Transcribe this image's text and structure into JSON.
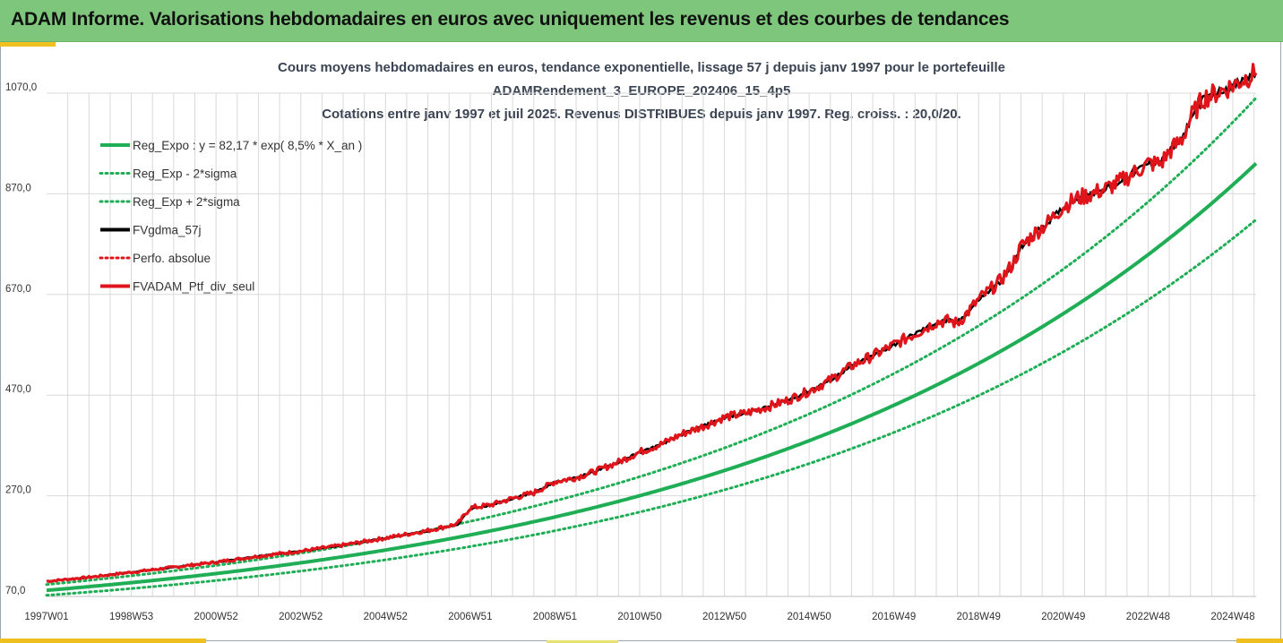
{
  "header": {
    "title": "ADAM Informe. Valorisations hebdomadaires en euros avec uniquement les revenus et des courbes de tendances"
  },
  "colors": {
    "banner": "#7dc67c",
    "regression": "#1fae55",
    "fvgdma": "#000000",
    "perf": "#e0151b",
    "grid": "#d9d9d9"
  },
  "chart_data": {
    "type": "line",
    "title": [
      "Cours moyens hebdomadaires  en euros, tendance exponentielle, lissage 57 j depuis janv 1997 pour le portefeuille",
      "ADAMRendement_3_EUROPE_202406_15_4p5",
      "Cotations  entre janv 1997 et juil 2025. Revenus DISTRIBUES depuis janv 1997. Reg. croiss. : 20,0/20."
    ],
    "xlabel": "",
    "ylabel": "",
    "x_tick_labels": [
      "1997W01",
      "1998W53",
      "2000W52",
      "2002W52",
      "2004W52",
      "2006W51",
      "2008W51",
      "2010W50",
      "2012W50",
      "2014W50",
      "2016W49",
      "2018W49",
      "2020W49",
      "2022W48",
      "2024W48"
    ],
    "y_tick_labels": [
      "70,0",
      "270,0",
      "470,0",
      "670,0",
      "870,0",
      "1070,0"
    ],
    "y_ticks": [
      70,
      270,
      470,
      670,
      870,
      1070
    ],
    "ylim": [
      70,
      1070
    ],
    "xlim": [
      1997.0,
      2025.55
    ],
    "grid": true,
    "legend_position": "top-left",
    "legend": [
      {
        "name": "Reg_Expo : y = 82,17 * exp( 8,5% *  X_an )",
        "style": "solid",
        "color": "#1fae55"
      },
      {
        "name": "Reg_Exp - 2*sigma",
        "style": "dotted",
        "color": "#1fae55"
      },
      {
        "name": "Reg_Exp + 2*sigma",
        "style": "dotted",
        "color": "#1fae55"
      },
      {
        "name": "FVgdma_57j",
        "style": "solid",
        "color": "#000000"
      },
      {
        "name": "Perfo. absolue",
        "style": "dotted",
        "color": "#e0151b"
      },
      {
        "name": "FVADAM_Ptf_div_seul",
        "style": "solid",
        "color": "#e0151b"
      }
    ],
    "regression": {
      "a": 82.17,
      "rate": 0.085,
      "x0": 1997.0,
      "band_factor_low": 0.88,
      "band_factor_high": 1.14
    },
    "series": [
      {
        "name": "FVADAM_Ptf_div_seul",
        "x": [
          1997.0,
          1998.0,
          1999.0,
          2000.0,
          2001.0,
          2002.0,
          2003.0,
          2004.0,
          2005.0,
          2006.0,
          2006.7,
          2007.0,
          2007.5,
          2008.0,
          2008.5,
          2009.0,
          2009.5,
          2010.0,
          2010.5,
          2011.0,
          2011.5,
          2012.0,
          2012.5,
          2013.0,
          2013.5,
          2014.0,
          2014.5,
          2015.0,
          2015.5,
          2016.0,
          2016.5,
          2017.0,
          2017.5,
          2018.0,
          2018.3,
          2018.5,
          2018.8,
          2019.0,
          2019.5,
          2019.8,
          2020.0,
          2020.3,
          2020.6,
          2021.0,
          2021.3,
          2021.6,
          2022.0,
          2022.3,
          2022.6,
          2023.0,
          2023.3,
          2023.5,
          2023.8,
          2024.0,
          2024.3,
          2024.6,
          2025.0,
          2025.3,
          2025.55
        ],
        "y": [
          100,
          108,
          118,
          128,
          138,
          150,
          160,
          172,
          186,
          201,
          214,
          246,
          252,
          265,
          276,
          298,
          306,
          320,
          337,
          357,
          372,
          393,
          408,
          426,
          434,
          446,
          460,
          478,
          500,
          528,
          548,
          570,
          592,
          615,
          618,
          612,
          640,
          660,
          696,
          730,
          765,
          790,
          810,
          845,
          860,
          868,
          880,
          892,
          908,
          930,
          930,
          954,
          978,
          1020,
          1060,
          1070,
          1085,
          1100,
          1110
        ]
      },
      {
        "name": "FVgdma_57j",
        "x": [
          1997.0,
          1998.0,
          1999.0,
          2000.0,
          2001.0,
          2002.0,
          2003.0,
          2004.0,
          2005.0,
          2006.0,
          2006.7,
          2007.0,
          2007.5,
          2008.0,
          2008.5,
          2009.0,
          2009.5,
          2010.0,
          2010.5,
          2011.0,
          2011.5,
          2012.0,
          2012.5,
          2013.0,
          2013.5,
          2014.0,
          2014.5,
          2015.0,
          2015.5,
          2016.0,
          2016.5,
          2017.0,
          2017.5,
          2018.0,
          2018.3,
          2018.5,
          2018.8,
          2019.0,
          2019.5,
          2019.8,
          2020.0,
          2020.3,
          2020.6,
          2021.0,
          2021.3,
          2021.6,
          2022.0,
          2022.3,
          2022.6,
          2023.0,
          2023.3,
          2023.5,
          2023.8,
          2024.0,
          2024.3,
          2024.6,
          2025.0,
          2025.3,
          2025.55
        ],
        "y": [
          100,
          108,
          118,
          128,
          138,
          150,
          160,
          172,
          186,
          200,
          212,
          244,
          252,
          265,
          276,
          297,
          306,
          320,
          337,
          356,
          372,
          392,
          408,
          425,
          434,
          446,
          460,
          478,
          500,
          527,
          548,
          570,
          592,
          614,
          618,
          614,
          640,
          660,
          694,
          728,
          764,
          790,
          810,
          843,
          860,
          868,
          880,
          892,
          910,
          930,
          934,
          954,
          978,
          1018,
          1058,
          1070,
          1084,
          1098,
          1110
        ]
      }
    ]
  }
}
